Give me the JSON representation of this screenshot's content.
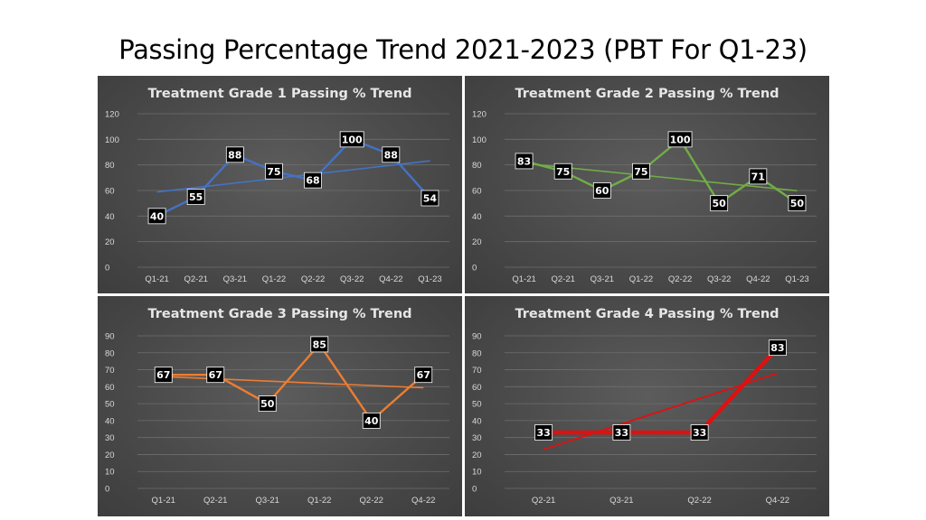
{
  "page": {
    "title": "Passing Percentage Trend 2021-2023 (PBT For Q1-23)"
  },
  "chart_data": [
    {
      "type": "line",
      "title": "Treatment Grade 1 Passing % Trend",
      "categories": [
        "Q1-21",
        "Q2-21",
        "Q3-21",
        "Q1-22",
        "Q2-22",
        "Q3-22",
        "Q4-22",
        "Q1-23"
      ],
      "values": [
        40,
        55,
        88,
        75,
        68,
        100,
        88,
        54
      ],
      "ylim": [
        0,
        120
      ],
      "yticks": [
        0,
        20,
        40,
        60,
        80,
        100,
        120
      ],
      "trendline": true,
      "grid": true,
      "color": "#4472c4"
    },
    {
      "type": "line",
      "title": "Treatment Grade 2 Passing % Trend",
      "categories": [
        "Q1-21",
        "Q2-21",
        "Q3-21",
        "Q1-22",
        "Q2-22",
        "Q3-22",
        "Q4-22",
        "Q1-23"
      ],
      "values": [
        83,
        75,
        60,
        75,
        100,
        50,
        71,
        50
      ],
      "ylim": [
        0,
        120
      ],
      "yticks": [
        0,
        20,
        40,
        60,
        80,
        100,
        120
      ],
      "trendline": true,
      "grid": true,
      "color": "#70ad47"
    },
    {
      "type": "line",
      "title": "Treatment Grade 3 Passing % Trend",
      "categories": [
        "Q1-21",
        "Q2-21",
        "Q3-21",
        "Q1-22",
        "Q2-22",
        "Q4-22"
      ],
      "values": [
        67,
        67,
        50,
        85,
        40,
        67
      ],
      "ylim": [
        0,
        90
      ],
      "yticks": [
        0,
        10,
        20,
        30,
        40,
        50,
        60,
        70,
        80,
        90
      ],
      "trendline": true,
      "grid": true,
      "color": "#ed7d31"
    },
    {
      "type": "line",
      "title": "Treatment Grade 4 Passing % Trend",
      "categories": [
        "Q2-21",
        "Q3-21",
        "Q2-22",
        "Q4-22"
      ],
      "values": [
        33,
        33,
        33,
        83
      ],
      "ylim": [
        0,
        90
      ],
      "yticks": [
        0,
        10,
        20,
        30,
        40,
        50,
        60,
        70,
        80,
        90
      ],
      "trendline": true,
      "grid": true,
      "color": "#e01010"
    }
  ]
}
